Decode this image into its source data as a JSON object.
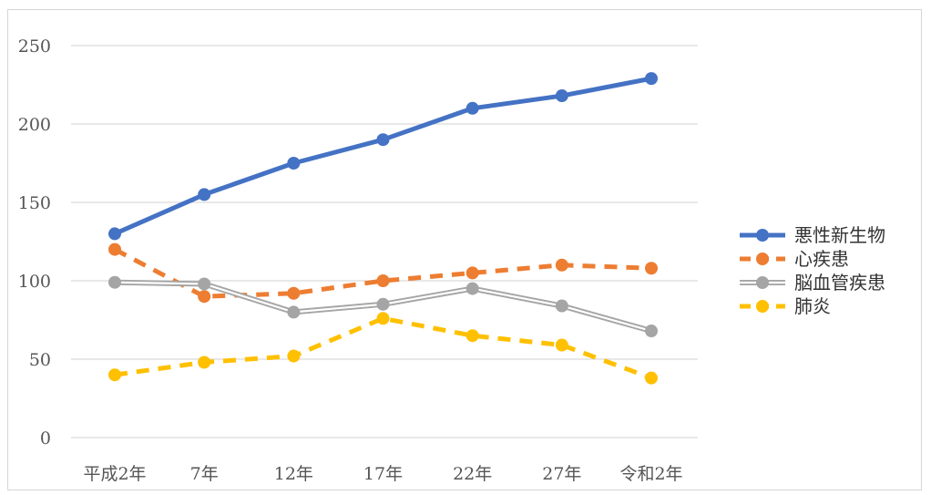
{
  "chart_data": {
    "type": "line",
    "categories": [
      "平成2年",
      "7年",
      "12年",
      "17年",
      "22年",
      "27年",
      "令和2年"
    ],
    "ylim": [
      0,
      250
    ],
    "yticks": [
      0,
      50,
      100,
      150,
      200,
      250
    ],
    "ytick_labels": [
      "0",
      "50",
      "100",
      "150",
      "200",
      "250"
    ],
    "grid": true,
    "legend_position": "right",
    "series": [
      {
        "name": "悪性新生物",
        "values": [
          130,
          155,
          175,
          190,
          210,
          218,
          229
        ],
        "color": "#4472C4",
        "style": "solid"
      },
      {
        "name": "心疾患",
        "values": [
          120,
          90,
          92,
          100,
          105,
          110,
          108
        ],
        "color": "#ED7D31",
        "style": "dashed"
      },
      {
        "name": "脳血管疾患",
        "values": [
          99,
          98,
          80,
          85,
          95,
          84,
          68
        ],
        "color": "#A5A5A5",
        "style": "double"
      },
      {
        "name": "肺炎",
        "values": [
          40,
          48,
          52,
          76,
          65,
          59,
          38
        ],
        "color": "#FFC000",
        "style": "dashed"
      }
    ]
  }
}
